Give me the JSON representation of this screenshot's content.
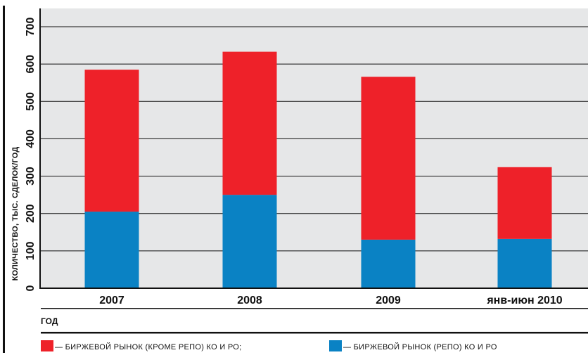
{
  "chart_data": {
    "type": "bar",
    "stacked": true,
    "categories": [
      "2007",
      "2008",
      "2009",
      "янв-июн 2010"
    ],
    "series": [
      {
        "name": "— БИРЖЕВОЙ РЫНОК (РЕПО) КО И РО",
        "color": "#0A82C4",
        "values": [
          205,
          250,
          130,
          132
        ]
      },
      {
        "name": "— БИРЖЕВОЙ РЫНОК (КРОМЕ РЕПО) КО И РО;",
        "color": "#EE2129",
        "values": [
          380,
          383,
          436,
          192
        ]
      }
    ],
    "xlabel": "ГОД",
    "ylabel": "КОЛИЧЕСТВО, ТЫС. СДЕЛОК/ГОД",
    "ylim": [
      0,
      700
    ],
    "yticks": [
      0,
      100,
      200,
      300,
      400,
      500,
      600,
      700
    ],
    "grid": true,
    "legend_position": "bottom"
  }
}
